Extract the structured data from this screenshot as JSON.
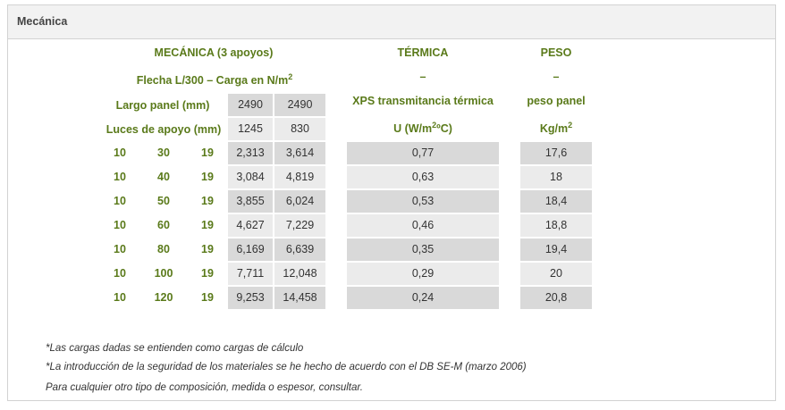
{
  "panel": {
    "title": "Mecánica"
  },
  "mecanica": {
    "heading": "MECÁNICA (3 apoyos)",
    "subheading": "Flecha L/300 – Carga en N/m",
    "subheading_sup": "2",
    "largo_label": "Largo panel (mm)",
    "largo_values": [
      "2490",
      "2490"
    ],
    "luces_label": "Luces de apoyo (mm)",
    "luces_values": [
      "1245",
      "830"
    ]
  },
  "termica": {
    "heading": "TÉRMICA",
    "dash": "–",
    "label": "XPS transmitancia térmica",
    "unit_pre": "U (W/m",
    "unit_sup": "2",
    "unit_post": "ºC)"
  },
  "peso": {
    "heading": "PESO",
    "dash": "–",
    "label": "peso panel",
    "unit_pre": "Kg/m",
    "unit_sup": "2"
  },
  "rows": [
    {
      "a": "10",
      "b": "30",
      "c": "19",
      "load1": "2,313",
      "load2": "3,614",
      "u": "0,77",
      "peso": "17,6"
    },
    {
      "a": "10",
      "b": "40",
      "c": "19",
      "load1": "3,084",
      "load2": "4,819",
      "u": "0,63",
      "peso": "18"
    },
    {
      "a": "10",
      "b": "50",
      "c": "19",
      "load1": "3,855",
      "load2": "6,024",
      "u": "0,53",
      "peso": "18,4"
    },
    {
      "a": "10",
      "b": "60",
      "c": "19",
      "load1": "4,627",
      "load2": "7,229",
      "u": "0,46",
      "peso": "18,8"
    },
    {
      "a": "10",
      "b": "80",
      "c": "19",
      "load1": "6,169",
      "load2": "6,639",
      "u": "0,35",
      "peso": "19,4"
    },
    {
      "a": "10",
      "b": "100",
      "c": "19",
      "load1": "7,711",
      "load2": "12,048",
      "u": "0,29",
      "peso": "20"
    },
    {
      "a": "10",
      "b": "120",
      "c": "19",
      "load1": "9,253",
      "load2": "14,458",
      "u": "0,24",
      "peso": "20,8"
    }
  ],
  "notes": [
    "*Las cargas dadas se entienden como cargas de cálculo",
    "*La introducción de la seguridad de los materiales se he hecho de acuerdo con el DB SE-M (marzo 2006)",
    "Para cualquier otro tipo de composición, medida o espesor, consultar."
  ],
  "colors": {
    "green": "#5a7a1a",
    "cell_dark": "#d9d9d9",
    "cell_light": "#ebebeb",
    "header_bg": "#f2f2f2"
  }
}
